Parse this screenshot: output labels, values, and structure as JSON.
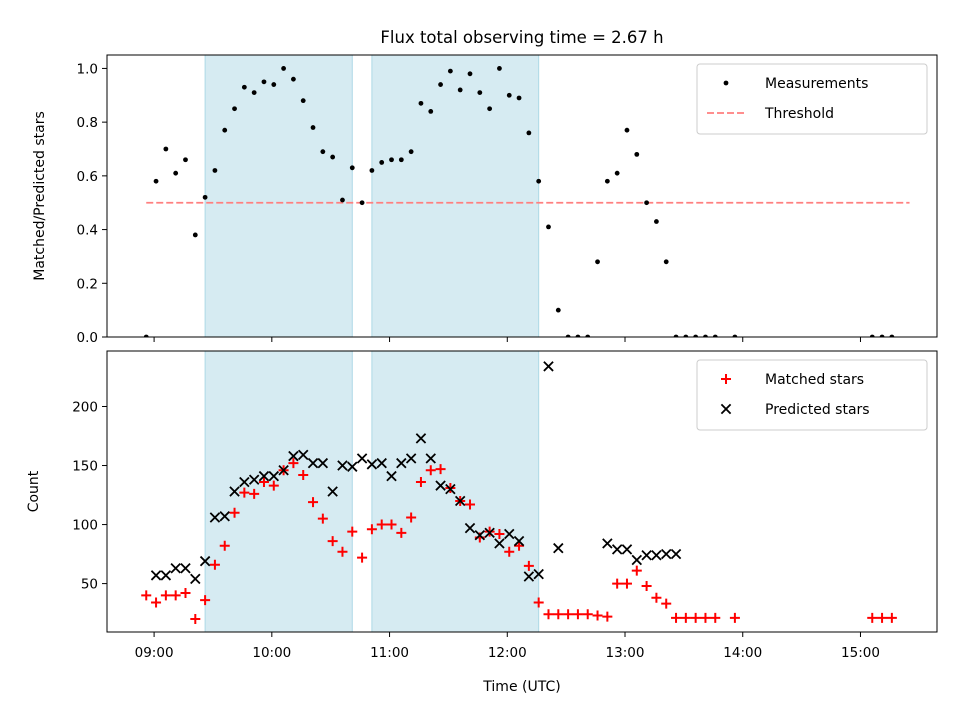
{
  "figure": {
    "title": "Flux total observing time = 2.67 h",
    "xlabel": "Time (UTC)",
    "xticks": [
      "09:00",
      "10:00",
      "11:00",
      "12:00",
      "13:00",
      "14:00",
      "15:00"
    ]
  },
  "colors": {
    "shade": "#add8e6",
    "measurement": "#000000",
    "threshold": "#ff7f7f",
    "matched": "#ff0000",
    "predicted": "#000000"
  },
  "chart_data": [
    {
      "type": "scatter",
      "ylabel": "Matched/Predicted stars",
      "xlim": [
        "08:36",
        "15:39"
      ],
      "ylim": [
        0,
        1.05
      ],
      "yticks": [
        0.0,
        0.2,
        0.4,
        0.6,
        0.8,
        1.0
      ],
      "yticklabels": [
        "0.0",
        "0.2",
        "0.4",
        "0.6",
        "0.8",
        "1.0"
      ],
      "shaded_intervals": [
        [
          "09:26",
          "10:41"
        ],
        [
          "10:51",
          "12:16"
        ]
      ],
      "legend": {
        "position": "top-right",
        "entries": [
          "Measurements",
          "Threshold"
        ]
      },
      "threshold": {
        "name": "Threshold",
        "y": 0.5,
        "x_range": [
          "08:56",
          "15:25"
        ]
      },
      "series": [
        {
          "name": "Measurements",
          "x": [
            "08:56",
            "09:01",
            "09:06",
            "09:11",
            "09:16",
            "09:21",
            "09:26",
            "09:31",
            "09:36",
            "09:41",
            "09:46",
            "09:51",
            "09:56",
            "10:01",
            "10:06",
            "10:11",
            "10:16",
            "10:21",
            "10:26",
            "10:31",
            "10:36",
            "10:41",
            "10:46",
            "10:51",
            "10:56",
            "11:01",
            "11:06",
            "11:11",
            "11:16",
            "11:21",
            "11:26",
            "11:31",
            "11:36",
            "11:41",
            "11:46",
            "11:51",
            "11:56",
            "12:01",
            "12:06",
            "12:11",
            "12:16",
            "12:21",
            "12:26",
            "12:31",
            "12:36",
            "12:41",
            "12:46",
            "12:51",
            "12:56",
            "13:01",
            "13:06",
            "13:11",
            "13:16",
            "13:21",
            "13:26",
            "13:31",
            "13:36",
            "13:41",
            "13:46",
            "13:56",
            "15:06",
            "15:11",
            "15:16"
          ],
          "y": [
            0.0,
            0.58,
            0.7,
            0.61,
            0.66,
            0.38,
            0.52,
            0.62,
            0.77,
            0.85,
            0.93,
            0.91,
            0.95,
            0.94,
            1.0,
            0.96,
            0.88,
            0.78,
            0.69,
            0.67,
            0.51,
            0.63,
            0.5,
            0.62,
            0.65,
            0.66,
            0.66,
            0.69,
            0.87,
            0.84,
            0.94,
            0.99,
            0.92,
            0.98,
            0.91,
            0.85,
            1.0,
            0.9,
            0.89,
            0.76,
            0.58,
            0.41,
            0.1,
            0.0,
            0.0,
            0.0,
            0.28,
            0.58,
            0.61,
            0.77,
            0.68,
            0.5,
            0.43,
            0.28,
            0.0,
            0.0,
            0.0,
            0.0,
            0.0,
            0.0,
            0.0,
            0.0,
            0.0
          ]
        }
      ]
    },
    {
      "type": "scatter",
      "ylabel": "Count",
      "xlim": [
        "08:36",
        "15:39"
      ],
      "ylim": [
        9,
        247
      ],
      "yticks": [
        50,
        100,
        150,
        200
      ],
      "yticklabels": [
        "50",
        "100",
        "150",
        "200"
      ],
      "shaded_intervals": [
        [
          "09:26",
          "10:41"
        ],
        [
          "10:51",
          "12:16"
        ]
      ],
      "legend": {
        "position": "top-right",
        "entries": [
          "Matched stars",
          "Predicted stars"
        ]
      },
      "series": [
        {
          "name": "Matched stars",
          "x": [
            "08:56",
            "09:01",
            "09:06",
            "09:11",
            "09:16",
            "09:21",
            "09:26",
            "09:31",
            "09:36",
            "09:41",
            "09:46",
            "09:51",
            "09:56",
            "10:01",
            "10:06",
            "10:11",
            "10:16",
            "10:21",
            "10:26",
            "10:31",
            "10:36",
            "10:41",
            "10:46",
            "10:51",
            "10:56",
            "11:01",
            "11:06",
            "11:11",
            "11:16",
            "11:21",
            "11:26",
            "11:31",
            "11:36",
            "11:41",
            "11:46",
            "11:51",
            "11:56",
            "12:01",
            "12:06",
            "12:11",
            "12:16",
            "12:21",
            "12:26",
            "12:31",
            "12:36",
            "12:41",
            "12:46",
            "12:51",
            "12:56",
            "13:01",
            "13:06",
            "13:11",
            "13:16",
            "13:21",
            "13:26",
            "13:31",
            "13:36",
            "13:41",
            "13:46",
            "13:56",
            "15:06",
            "15:11",
            "15:16"
          ],
          "y": [
            40,
            34,
            40,
            40,
            42,
            20,
            36,
            66,
            82,
            110,
            127,
            126,
            136,
            133,
            146,
            152,
            142,
            119,
            105,
            86,
            77,
            94,
            72,
            96,
            100,
            100,
            93,
            106,
            136,
            146,
            147,
            131,
            120,
            117,
            89,
            94,
            92,
            77,
            82,
            65,
            34,
            24,
            24,
            24,
            24,
            24,
            23,
            22,
            50,
            50,
            61,
            48,
            38,
            33,
            21,
            21,
            21,
            21,
            21,
            21,
            21,
            21,
            21
          ]
        },
        {
          "name": "Predicted stars",
          "x": [
            "09:01",
            "09:06",
            "09:11",
            "09:16",
            "09:21",
            "09:26",
            "09:31",
            "09:36",
            "09:41",
            "09:46",
            "09:51",
            "09:56",
            "10:01",
            "10:06",
            "10:11",
            "10:16",
            "10:21",
            "10:26",
            "10:31",
            "10:36",
            "10:41",
            "10:46",
            "10:51",
            "10:56",
            "11:01",
            "11:06",
            "11:11",
            "11:16",
            "11:21",
            "11:26",
            "11:31",
            "11:36",
            "11:41",
            "11:46",
            "11:51",
            "11:56",
            "12:01",
            "12:06",
            "12:11",
            "12:16",
            "12:21",
            "12:26",
            "12:51",
            "12:56",
            "13:01",
            "13:06",
            "13:11",
            "13:16",
            "13:21",
            "13:26"
          ],
          "y": [
            57,
            57,
            63,
            63,
            54,
            69,
            106,
            107,
            128,
            136,
            138,
            141,
            141,
            146,
            158,
            159,
            152,
            152,
            128,
            150,
            149,
            156,
            151,
            152,
            141,
            152,
            156,
            173,
            156,
            133,
            130,
            120,
            97,
            91,
            93,
            84,
            92,
            86,
            56,
            58,
            234,
            80,
            84,
            79,
            79,
            70,
            74,
            74,
            75,
            75
          ]
        }
      ]
    }
  ]
}
